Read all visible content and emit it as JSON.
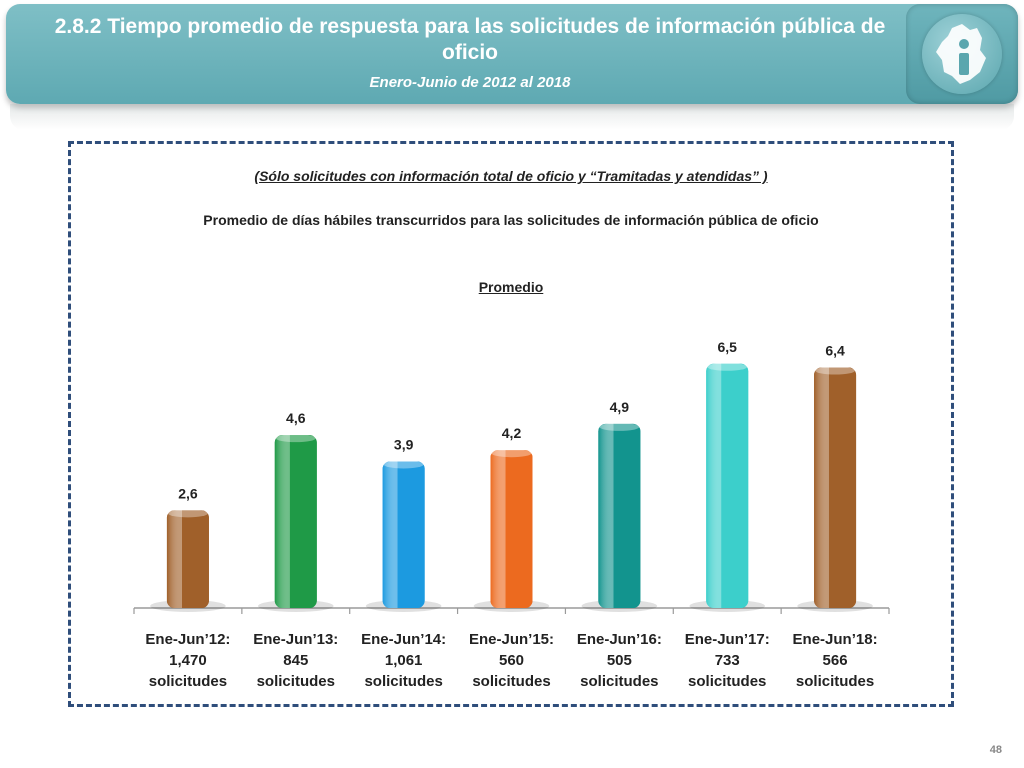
{
  "header": {
    "title": "2.8.2 Tiempo promedio de respuesta para las solicitudes de información pública de oficio",
    "subtitle": "Enero-Junio de 2012 al 2018"
  },
  "logo": {
    "icon": "cdmx-map-info-icon",
    "glyph": "i"
  },
  "chart_data": {
    "type": "bar",
    "note": "(Sólo solicitudes con información total de oficio y “Tramitadas y atendidas” )",
    "description": "Promedio de días hábiles transcurridos para las solicitudes de información pública de oficio",
    "title": "Promedio",
    "categories": [
      [
        "Ene-Jun’12:",
        "1,470",
        "solicitudes"
      ],
      [
        "Ene-Jun’13:",
        "845",
        "solicitudes"
      ],
      [
        "Ene-Jun’14:",
        "1,061",
        "solicitudes"
      ],
      [
        "Ene-Jun’15:",
        "560",
        "solicitudes"
      ],
      [
        "Ene-Jun’16:",
        "505",
        "solicitudes"
      ],
      [
        "Ene-Jun’17:",
        "733",
        "solicitudes"
      ],
      [
        "Ene-Jun’18:",
        "566",
        "solicitudes"
      ]
    ],
    "values": [
      2.6,
      4.6,
      3.9,
      4.2,
      4.9,
      6.5,
      6.4
    ],
    "value_labels": [
      "2,6",
      "4,6",
      "3,9",
      "4,2",
      "4,9",
      "6,5",
      "6,4"
    ],
    "colors": [
      "#a0602a",
      "#1f9a47",
      "#1c9ae0",
      "#ec6a1f",
      "#12948e",
      "#3ccfcb",
      "#a0602a"
    ],
    "ylim": [
      0,
      7
    ],
    "grid": false,
    "legend": "none"
  },
  "page_number": "48"
}
